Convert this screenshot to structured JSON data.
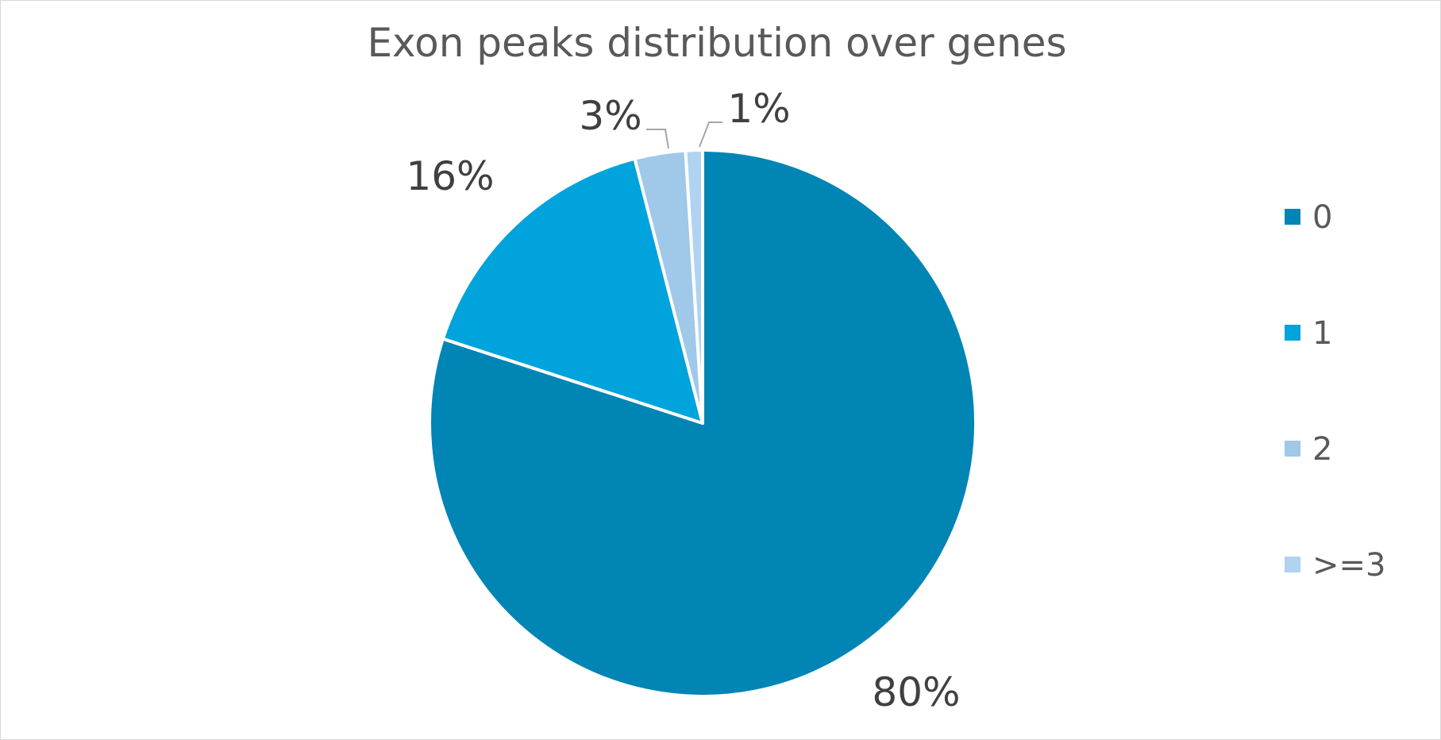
{
  "chart_data": {
    "type": "pie",
    "title": "Exon peaks distribution over genes",
    "categories": [
      "0",
      "1",
      "2",
      ">=3"
    ],
    "values": [
      80,
      16,
      3,
      1
    ],
    "labels": [
      "80%",
      "16%",
      "3%",
      "1%"
    ],
    "legend_position": "right",
    "colors": [
      "#0085B5",
      "#00A3DB",
      "#A0C8E8",
      "#AFD3F0"
    ]
  }
}
